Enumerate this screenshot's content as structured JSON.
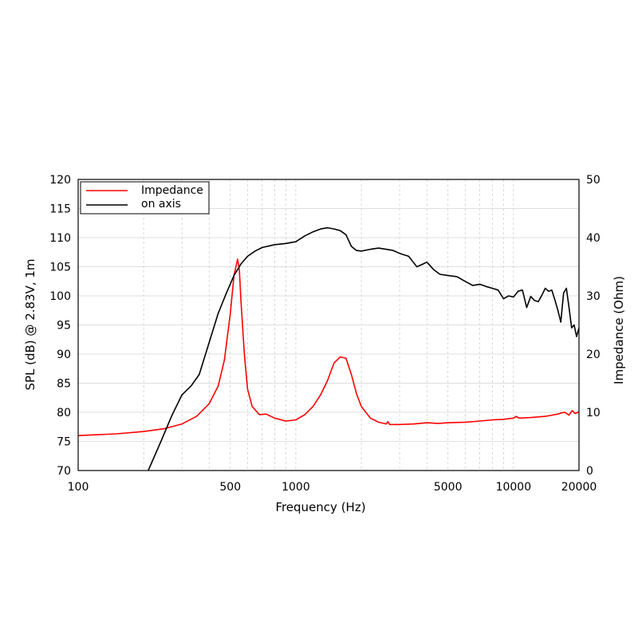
{
  "chart_data": {
    "type": "line",
    "title": "",
    "xlabel": "Frequency (Hz)",
    "ylabel": "SPL (dB) @ 2.83V, 1m",
    "y2label": "Impedance (Ohm)",
    "xscale": "log",
    "xlim": [
      100,
      20000
    ],
    "ylim": [
      70,
      120
    ],
    "y2lim": [
      0,
      50
    ],
    "grid": true,
    "legend_position": "top-left",
    "x_ticks": [
      100,
      500,
      1000,
      5000,
      10000,
      20000
    ],
    "x_tick_labels": [
      "100",
      "500",
      "1000",
      "5000",
      "10000",
      "20000"
    ],
    "y_ticks": [
      70,
      75,
      80,
      85,
      90,
      95,
      100,
      105,
      110,
      115,
      120
    ],
    "y_tick_labels": [
      "70",
      "75",
      "80",
      "85",
      "90",
      "95",
      "100",
      "105",
      "110",
      "115",
      "120"
    ],
    "y2_ticks": [
      0,
      10,
      20,
      30,
      40,
      50
    ],
    "y2_tick_labels": [
      "0",
      "10",
      "20",
      "30",
      "40",
      "50"
    ],
    "series": [
      {
        "name": "Impedance",
        "axis": "right",
        "color": "#ff0000",
        "x": [
          100,
          150,
          200,
          250,
          300,
          350,
          400,
          440,
          470,
          500,
          520,
          540,
          550,
          560,
          580,
          600,
          630,
          680,
          730,
          800,
          900,
          1000,
          1100,
          1200,
          1300,
          1400,
          1500,
          1600,
          1700,
          1800,
          1900,
          2000,
          2200,
          2400,
          2600,
          2650,
          2700,
          3000,
          3500,
          4000,
          4500,
          5000,
          6000,
          7000,
          8000,
          9000,
          10000,
          10300,
          10600,
          12000,
          14000,
          15000,
          16000,
          16600,
          17200,
          18000,
          18600,
          19200,
          20000
        ],
        "values": [
          6.0,
          6.3,
          6.7,
          7.2,
          8.0,
          9.3,
          11.5,
          14.5,
          19.0,
          27.0,
          33.5,
          36.3,
          34.5,
          29.0,
          20.0,
          14.0,
          11.0,
          9.6,
          9.7,
          9.0,
          8.5,
          8.7,
          9.6,
          11.0,
          13.0,
          15.5,
          18.5,
          19.5,
          19.3,
          16.5,
          13.2,
          11.0,
          9.0,
          8.3,
          8.0,
          8.4,
          7.9,
          7.9,
          8.0,
          8.2,
          8.1,
          8.2,
          8.3,
          8.5,
          8.7,
          8.8,
          9.0,
          9.3,
          9.0,
          9.1,
          9.3,
          9.5,
          9.7,
          9.9,
          10.0,
          9.5,
          10.3,
          9.8,
          10.1
        ]
      },
      {
        "name": "on axis",
        "axis": "left",
        "color": "#000000",
        "x": [
          210,
          240,
          270,
          300,
          330,
          360,
          400,
          440,
          480,
          520,
          560,
          600,
          650,
          700,
          800,
          900,
          1000,
          1100,
          1200,
          1300,
          1400,
          1500,
          1600,
          1700,
          1800,
          1900,
          2000,
          2200,
          2400,
          2600,
          2800,
          3000,
          3300,
          3600,
          3800,
          4000,
          4300,
          4600,
          5000,
          5500,
          6000,
          6500,
          7000,
          7500,
          8000,
          8500,
          9000,
          9500,
          10000,
          10500,
          11000,
          11500,
          12000,
          12500,
          13000,
          13500,
          14000,
          14500,
          15000,
          15500,
          16000,
          16500,
          17000,
          17500,
          18000,
          18500,
          19000,
          19500,
          20000
        ],
        "values": [
          70.0,
          75.0,
          79.5,
          83.0,
          84.5,
          86.5,
          92.0,
          97.0,
          100.5,
          103.5,
          105.5,
          106.8,
          107.7,
          108.3,
          108.8,
          109.0,
          109.3,
          110.3,
          111.0,
          111.5,
          111.7,
          111.5,
          111.2,
          110.5,
          108.5,
          107.8,
          107.7,
          108.0,
          108.2,
          108.0,
          107.8,
          107.3,
          106.8,
          105.0,
          105.4,
          105.8,
          104.5,
          103.7,
          103.5,
          103.3,
          102.5,
          101.8,
          102.0,
          101.6,
          101.3,
          101.0,
          99.5,
          100.0,
          99.8,
          100.8,
          101.0,
          98.0,
          99.9,
          99.2,
          99.0,
          100.1,
          101.3,
          100.8,
          101.0,
          99.3,
          97.5,
          95.5,
          100.5,
          101.3,
          98.0,
          94.5,
          95.0,
          93.0,
          94.5
        ]
      }
    ]
  }
}
